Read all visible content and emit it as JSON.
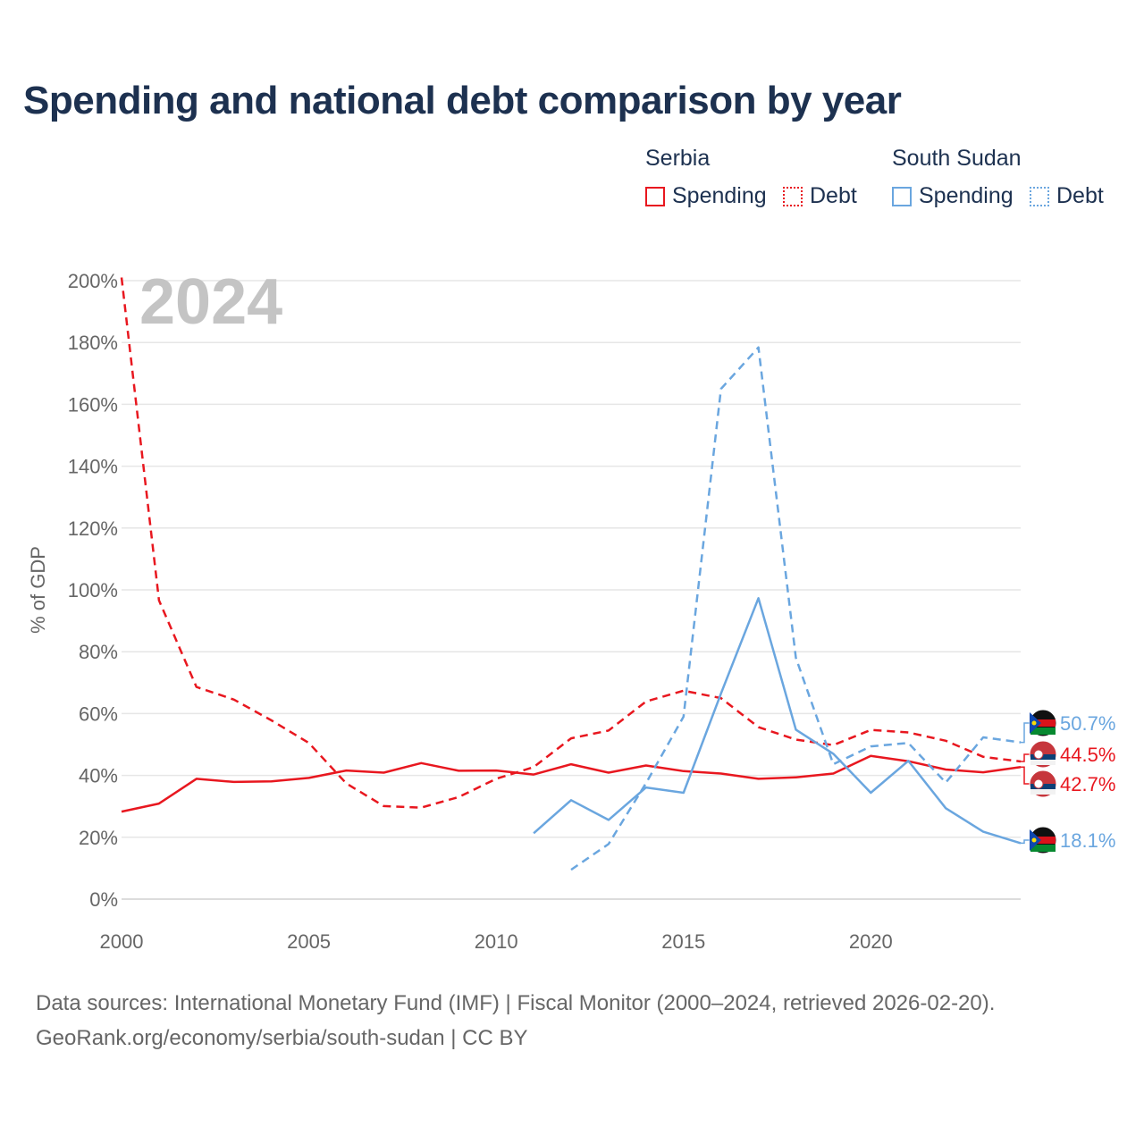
{
  "title": "Spending and national debt comparison by year",
  "legend": {
    "groups": [
      {
        "name": "Serbia",
        "items": [
          {
            "label": "Spending"
          },
          {
            "label": "Debt"
          }
        ]
      },
      {
        "name": "South Sudan",
        "items": [
          {
            "label": "Spending"
          },
          {
            "label": "Debt"
          }
        ]
      }
    ]
  },
  "colors": {
    "serbia": "#e8171f",
    "south_sudan": "#6aa6df",
    "grid": "#e6e6e6",
    "axis_text": "#666666",
    "year_watermark": "#c4c4c4"
  },
  "footer": {
    "line1": "Data sources: International Monetary Fund (IMF) | Fiscal Monitor (2000–2024, retrieved 2026-02-20).",
    "line2": "GeoRank.org/economy/serbia/south-sudan | CC BY"
  },
  "chart_data": {
    "type": "line",
    "title": "Spending and national debt comparison by year",
    "year_label": "2024",
    "ylabel": "% of GDP",
    "xlabel": "",
    "xlim": [
      2000,
      2024
    ],
    "ylim": [
      0,
      200
    ],
    "x_ticks": [
      2000,
      2005,
      2010,
      2015,
      2020
    ],
    "x_tick_labels": [
      "2000",
      "2005",
      "2010",
      "2015",
      "2020"
    ],
    "y_ticks": [
      0,
      20,
      40,
      60,
      80,
      100,
      120,
      140,
      160,
      180,
      200
    ],
    "y_tick_labels": [
      "0%",
      "20%",
      "40%",
      "60%",
      "80%",
      "100%",
      "120%",
      "140%",
      "160%",
      "180%",
      "200%"
    ],
    "grid": true,
    "series": [
      {
        "name": "Serbia Spending",
        "country": "Serbia",
        "color": "#e8171f",
        "dash": false,
        "x": [
          2000,
          2001,
          2002,
          2003,
          2004,
          2005,
          2006,
          2007,
          2008,
          2009,
          2010,
          2011,
          2012,
          2013,
          2014,
          2015,
          2016,
          2017,
          2018,
          2019,
          2020,
          2021,
          2022,
          2023,
          2024
        ],
        "values": [
          28.3,
          30.9,
          38.9,
          37.9,
          38.1,
          39.2,
          41.6,
          40.9,
          44.0,
          41.5,
          41.6,
          40.3,
          43.6,
          40.9,
          43.2,
          41.4,
          40.6,
          38.9,
          39.4,
          40.6,
          46.3,
          44.6,
          41.9,
          41.0,
          42.7
        ],
        "end_label": "42.7%"
      },
      {
        "name": "Serbia Debt",
        "country": "Serbia",
        "color": "#e8171f",
        "dash": true,
        "x": [
          2000,
          2001,
          2002,
          2003,
          2004,
          2005,
          2006,
          2007,
          2008,
          2009,
          2010,
          2011,
          2012,
          2013,
          2014,
          2015,
          2016,
          2017,
          2018,
          2019,
          2020,
          2021,
          2022,
          2023,
          2024
        ],
        "values": [
          201,
          96.6,
          68.6,
          64.5,
          57.8,
          50.5,
          37.4,
          30.1,
          29.6,
          33.0,
          38.9,
          42.7,
          52.0,
          54.5,
          63.9,
          67.4,
          65.0,
          55.6,
          51.6,
          49.8,
          54.7,
          53.9,
          51.2,
          46.0,
          44.5
        ],
        "end_label": "44.5%"
      },
      {
        "name": "South Sudan Spending",
        "country": "South Sudan",
        "color": "#6aa6df",
        "dash": false,
        "x": [
          2011,
          2012,
          2013,
          2014,
          2015,
          2016,
          2017,
          2018,
          2019,
          2020,
          2021,
          2022,
          2023,
          2024
        ],
        "values": [
          21.3,
          32.0,
          25.6,
          36.1,
          34.4,
          66.5,
          97.3,
          54.8,
          47.0,
          34.4,
          44.7,
          29.4,
          21.8,
          18.1
        ],
        "end_label": "18.1%"
      },
      {
        "name": "South Sudan Debt",
        "country": "South Sudan",
        "color": "#6aa6df",
        "dash": true,
        "x": [
          2012,
          2013,
          2014,
          2015,
          2016,
          2017,
          2018,
          2019,
          2020,
          2021,
          2022,
          2023,
          2024
        ],
        "values": [
          9.5,
          17.8,
          37.5,
          59.0,
          165.0,
          178.4,
          78.0,
          43.6,
          49.4,
          50.5,
          37.7,
          52.3,
          50.7
        ],
        "end_label": "50.7%"
      }
    ]
  }
}
